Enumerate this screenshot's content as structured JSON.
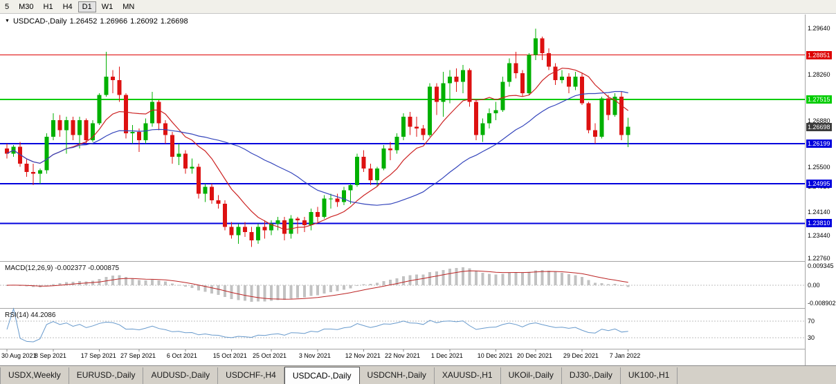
{
  "toolbar": {
    "timeframes": [
      {
        "label": "5",
        "active": false
      },
      {
        "label": "M30",
        "active": false
      },
      {
        "label": "H1",
        "active": false
      },
      {
        "label": "H4",
        "active": false
      },
      {
        "label": "D1",
        "active": true
      },
      {
        "label": "W1",
        "active": false
      },
      {
        "label": "MN",
        "active": false
      }
    ]
  },
  "chart_header": {
    "collapse_icon": "▼",
    "symbol": "USDCAD-,Daily",
    "open": "1.26452",
    "high": "1.26966",
    "low": "1.26092",
    "close": "1.26698"
  },
  "chart_data": {
    "type": "candlestick",
    "symbol": "USDCAD-",
    "timeframe": "Daily",
    "price_min": 1.227,
    "price_max": 1.3,
    "up_color": "#00b000",
    "down_color": "#dd1111",
    "candles": [
      [
        1.2605,
        1.262,
        1.2575,
        1.259
      ],
      [
        1.259,
        1.2615,
        1.258,
        1.261
      ],
      [
        1.261,
        1.2625,
        1.255,
        1.256
      ],
      [
        1.256,
        1.2575,
        1.252,
        1.2535
      ],
      [
        1.2535,
        1.256,
        1.2495,
        1.253
      ],
      [
        1.253,
        1.2545,
        1.25,
        1.254
      ],
      [
        1.254,
        1.265,
        1.253,
        1.264
      ],
      [
        1.264,
        1.271,
        1.263,
        1.269
      ],
      [
        1.269,
        1.2705,
        1.264,
        1.266
      ],
      [
        1.266,
        1.27,
        1.259,
        1.269
      ],
      [
        1.269,
        1.27,
        1.263,
        1.2645
      ],
      [
        1.2645,
        1.27,
        1.2605,
        1.269
      ],
      [
        1.269,
        1.2695,
        1.262,
        1.263
      ],
      [
        1.263,
        1.269,
        1.2625,
        1.268
      ],
      [
        1.268,
        1.277,
        1.2675,
        1.2765
      ],
      [
        1.2765,
        1.2895,
        1.276,
        1.282
      ],
      [
        1.282,
        1.284,
        1.277,
        1.281
      ],
      [
        1.281,
        1.285,
        1.2745,
        1.2765
      ],
      [
        1.2765,
        1.277,
        1.2635,
        1.265
      ],
      [
        1.265,
        1.2675,
        1.262,
        1.2655
      ],
      [
        1.2655,
        1.2665,
        1.2595,
        1.263
      ],
      [
        1.263,
        1.2695,
        1.262,
        1.268
      ],
      [
        1.268,
        1.2775,
        1.267,
        1.2745
      ],
      [
        1.2745,
        1.275,
        1.266,
        1.268
      ],
      [
        1.268,
        1.269,
        1.262,
        1.2645
      ],
      [
        1.2645,
        1.2655,
        1.256,
        1.258
      ],
      [
        1.258,
        1.262,
        1.2555,
        1.259
      ],
      [
        1.259,
        1.26,
        1.253,
        1.2545
      ],
      [
        1.2545,
        1.2575,
        1.253,
        1.255
      ],
      [
        1.255,
        1.256,
        1.2455,
        1.247
      ],
      [
        1.247,
        1.25,
        1.2445,
        1.249
      ],
      [
        1.249,
        1.25,
        1.244,
        1.245
      ],
      [
        1.245,
        1.2465,
        1.2425,
        1.244
      ],
      [
        1.244,
        1.245,
        1.236,
        1.237
      ],
      [
        1.237,
        1.2385,
        1.2335,
        1.2345
      ],
      [
        1.2345,
        1.238,
        1.232,
        1.237
      ],
      [
        1.237,
        1.2385,
        1.234,
        1.2355
      ],
      [
        1.2355,
        1.237,
        1.231,
        1.233
      ],
      [
        1.233,
        1.238,
        1.232,
        1.237
      ],
      [
        1.237,
        1.239,
        1.2335,
        1.236
      ],
      [
        1.236,
        1.239,
        1.2345,
        1.238
      ],
      [
        1.238,
        1.24,
        1.236,
        1.239
      ],
      [
        1.239,
        1.24,
        1.233,
        1.235
      ],
      [
        1.235,
        1.2405,
        1.2335,
        1.2395
      ],
      [
        1.2395,
        1.24,
        1.235,
        1.239
      ],
      [
        1.239,
        1.24,
        1.2355,
        1.2375
      ],
      [
        1.2375,
        1.2425,
        1.236,
        1.2415
      ],
      [
        1.2415,
        1.243,
        1.2385,
        1.24
      ],
      [
        1.24,
        1.2465,
        1.2395,
        1.2455
      ],
      [
        1.2455,
        1.247,
        1.2425,
        1.2455
      ],
      [
        1.2455,
        1.247,
        1.243,
        1.2445
      ],
      [
        1.2445,
        1.249,
        1.2435,
        1.248
      ],
      [
        1.248,
        1.25,
        1.244,
        1.2495
      ],
      [
        1.2495,
        1.259,
        1.249,
        1.258
      ],
      [
        1.258,
        1.26,
        1.2535,
        1.2545
      ],
      [
        1.2545,
        1.256,
        1.2495,
        1.251
      ],
      [
        1.251,
        1.255,
        1.249,
        1.2545
      ],
      [
        1.2545,
        1.2615,
        1.254,
        1.2605
      ],
      [
        1.2605,
        1.2625,
        1.257,
        1.26
      ],
      [
        1.26,
        1.265,
        1.259,
        1.264
      ],
      [
        1.264,
        1.271,
        1.263,
        1.27
      ],
      [
        1.27,
        1.2715,
        1.2645,
        1.267
      ],
      [
        1.267,
        1.27,
        1.264,
        1.2665
      ],
      [
        1.2665,
        1.2675,
        1.263,
        1.2645
      ],
      [
        1.2645,
        1.28,
        1.264,
        1.279
      ],
      [
        1.279,
        1.28,
        1.2705,
        1.2745
      ],
      [
        1.2745,
        1.2835,
        1.27,
        1.28
      ],
      [
        1.28,
        1.284,
        1.274,
        1.282
      ],
      [
        1.282,
        1.2845,
        1.2775,
        1.2805
      ],
      [
        1.2805,
        1.2855,
        1.277,
        1.284
      ],
      [
        1.284,
        1.2845,
        1.273,
        1.2745
      ],
      [
        1.2745,
        1.275,
        1.263,
        1.2645
      ],
      [
        1.2645,
        1.2695,
        1.2625,
        1.268
      ],
      [
        1.268,
        1.2725,
        1.2665,
        1.271
      ],
      [
        1.271,
        1.2745,
        1.269,
        1.272
      ],
      [
        1.272,
        1.282,
        1.2715,
        1.2805
      ],
      [
        1.2805,
        1.2875,
        1.279,
        1.286
      ],
      [
        1.286,
        1.2895,
        1.2815,
        1.283
      ],
      [
        1.283,
        1.284,
        1.276,
        1.277
      ],
      [
        1.277,
        1.289,
        1.2765,
        1.2885
      ],
      [
        1.2885,
        1.2964,
        1.287,
        1.2935
      ],
      [
        1.2935,
        1.294,
        1.287,
        1.289
      ],
      [
        1.289,
        1.2905,
        1.284,
        1.285
      ],
      [
        1.285,
        1.286,
        1.2795,
        1.281
      ],
      [
        1.281,
        1.284,
        1.28,
        1.282
      ],
      [
        1.282,
        1.283,
        1.277,
        1.279
      ],
      [
        1.279,
        1.2835,
        1.278,
        1.282
      ],
      [
        1.282,
        1.283,
        1.2735,
        1.274
      ],
      [
        1.274,
        1.2745,
        1.265,
        1.266
      ],
      [
        1.266,
        1.268,
        1.262,
        1.264
      ],
      [
        1.264,
        1.276,
        1.2635,
        1.2755
      ],
      [
        1.2755,
        1.2765,
        1.269,
        1.2705
      ],
      [
        1.2705,
        1.277,
        1.27,
        1.276
      ],
      [
        1.276,
        1.2775,
        1.263,
        1.2645
      ],
      [
        1.26452,
        1.26966,
        1.26092,
        1.26698
      ]
    ],
    "x_labels": [
      {
        "text": "30 Aug 2021",
        "index": 0
      },
      {
        "text": "8 Sep 2021",
        "index": 7
      },
      {
        "text": "17 Sep 2021",
        "index": 14
      },
      {
        "text": "27 Sep 2021",
        "index": 20
      },
      {
        "text": "6 Oct 2021",
        "index": 27
      },
      {
        "text": "15 Oct 2021",
        "index": 34
      },
      {
        "text": "25 Oct 2021",
        "index": 40
      },
      {
        "text": "3 Nov 2021",
        "index": 47
      },
      {
        "text": "12 Nov 2021",
        "index": 54
      },
      {
        "text": "22 Nov 2021",
        "index": 60
      },
      {
        "text": "1 Dec 2021",
        "index": 67
      },
      {
        "text": "10 Dec 2021",
        "index": 74
      },
      {
        "text": "20 Dec 2021",
        "index": 80
      },
      {
        "text": "29 Dec 2021",
        "index": 87
      },
      {
        "text": "7 Jan 2022",
        "index": 94
      }
    ],
    "price_axis_labels": [
      1.2964,
      1.2826,
      1.2688,
      1.255,
      1.2492,
      1.2414,
      1.2344,
      1.2276
    ],
    "hlines": [
      {
        "value": 1.28851,
        "color": "#dd0000",
        "width": 1
      },
      {
        "value": 1.27515,
        "color": "#00cc00",
        "width": 2
      },
      {
        "value": 1.26199,
        "color": "#0000dd",
        "width": 2
      },
      {
        "value": 1.24995,
        "color": "#0000dd",
        "width": 2
      },
      {
        "value": 1.2381,
        "color": "#0000dd",
        "width": 2
      }
    ],
    "current_price": {
      "value": 1.26698,
      "bg": "#3c3c3c"
    },
    "moving_averages": [
      {
        "period": 10,
        "color": "#cc2222"
      },
      {
        "period": 30,
        "color": "#3344bb"
      }
    ],
    "macd": {
      "label": "MACD(12,26,9) -0.002377 -0.000875",
      "fast": 12,
      "slow": 26,
      "signal": 9,
      "range": [
        -0.0105,
        0.0105
      ],
      "axis_labels": [
        {
          "value": 0.009345,
          "text": "0.009345"
        },
        {
          "value": 0,
          "text": "0.00"
        },
        {
          "value": -0.008902,
          "text": "-0.008902"
        }
      ],
      "histogram_color": "#c2c2c2",
      "signal_color": "#bb2222"
    },
    "rsi": {
      "label": "RSI(14) 44.2086",
      "period": 14,
      "range": [
        5,
        95
      ],
      "levels": [
        70,
        30
      ],
      "line_color": "#6699cc"
    }
  },
  "bottom_tabs": [
    {
      "label": "USDX,Weekly",
      "active": false
    },
    {
      "label": "EURUSD-,Daily",
      "active": false
    },
    {
      "label": "AUDUSD-,Daily",
      "active": false
    },
    {
      "label": "USDCHF-,H4",
      "active": false
    },
    {
      "label": "USDCAD-,Daily",
      "active": true
    },
    {
      "label": "USDCNH-,Daily",
      "active": false
    },
    {
      "label": "XAUUSD-,H1",
      "active": false
    },
    {
      "label": "UKOil-,Daily",
      "active": false
    },
    {
      "label": "DJ30-,Daily",
      "active": false
    },
    {
      "label": "UK100-,H1",
      "active": false
    }
  ]
}
